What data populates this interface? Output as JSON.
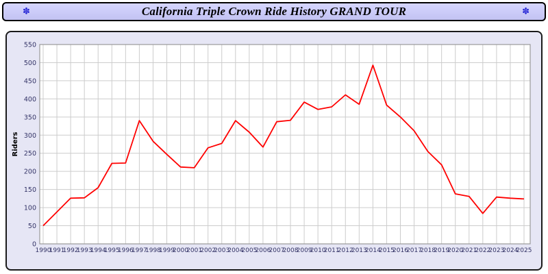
{
  "titlebar": {
    "left_icon": "sparkle",
    "right_icon": "sparkle"
  },
  "chart_data": {
    "type": "line",
    "title": "California Triple Crown Ride History GRAND TOUR",
    "xlabel": "",
    "ylabel": "Riders",
    "ylim": [
      0,
      550
    ],
    "ytick_step": 50,
    "grid": true,
    "x": [
      1990,
      1991,
      1992,
      1993,
      1994,
      1995,
      1996,
      1997,
      1998,
      1999,
      2000,
      2001,
      2002,
      2003,
      2004,
      2005,
      2006,
      2007,
      2008,
      2009,
      2010,
      2011,
      2012,
      2013,
      2014,
      2015,
      2016,
      2017,
      2018,
      2019,
      2020,
      2021,
      2022,
      2023,
      2024,
      2025
    ],
    "series": [
      {
        "name": "Riders",
        "color": "#ff0000",
        "values": [
          50,
          88,
          126,
          127,
          155,
          222,
          223,
          340,
          283,
          247,
          212,
          210,
          265,
          277,
          340,
          308,
          267,
          337,
          341,
          391,
          371,
          378,
          411,
          385,
          493,
          383,
          350,
          312,
          255,
          218,
          138,
          131,
          84,
          129,
          126,
          124
        ]
      }
    ],
    "colors": {
      "line": "#ff0000",
      "titlebar_bg": "#ccccff",
      "panel_bg": "#e6e6f5",
      "plot_bg": "#ffffff",
      "gridline": "#cccccc",
      "plot_frame": "#999999",
      "tick_text": "#333366",
      "axis_label_text": "#000000"
    }
  }
}
